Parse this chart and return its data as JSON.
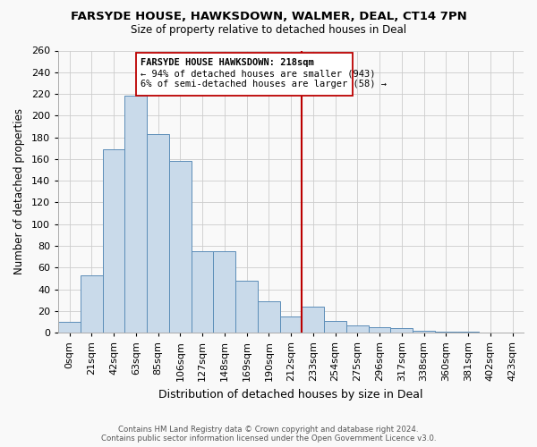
{
  "title": "FARSYDE HOUSE, HAWKSDOWN, WALMER, DEAL, CT14 7PN",
  "subtitle": "Size of property relative to detached houses in Deal",
  "xlabel": "Distribution of detached houses by size in Deal",
  "ylabel": "Number of detached properties",
  "bar_labels": [
    "0sqm",
    "21sqm",
    "42sqm",
    "63sqm",
    "85sqm",
    "106sqm",
    "127sqm",
    "148sqm",
    "169sqm",
    "190sqm",
    "212sqm",
    "233sqm",
    "254sqm",
    "275sqm",
    "296sqm",
    "317sqm",
    "338sqm",
    "360sqm",
    "381sqm",
    "402sqm",
    "423sqm"
  ],
  "bar_heights": [
    10,
    53,
    169,
    218,
    183,
    158,
    75,
    75,
    48,
    29,
    15,
    24,
    11,
    7,
    5,
    4,
    2,
    1,
    1,
    0,
    0
  ],
  "bar_color": "#c9daea",
  "bar_edge_color": "#5b8db8",
  "marker_line_color": "#bb0000",
  "annotation_line1": "FARSYDE HOUSE HAWKSDOWN: 218sqm",
  "annotation_line2": "← 94% of detached houses are smaller (943)",
  "annotation_line3": "6% of semi-detached houses are larger (58) →",
  "ylim": [
    0,
    260
  ],
  "yticks": [
    0,
    20,
    40,
    60,
    80,
    100,
    120,
    140,
    160,
    180,
    200,
    220,
    240,
    260
  ],
  "footer1": "Contains HM Land Registry data © Crown copyright and database right 2024.",
  "footer2": "Contains public sector information licensed under the Open Government Licence v3.0.",
  "bg_color": "#f9f9f9",
  "grid_color": "#cccccc"
}
